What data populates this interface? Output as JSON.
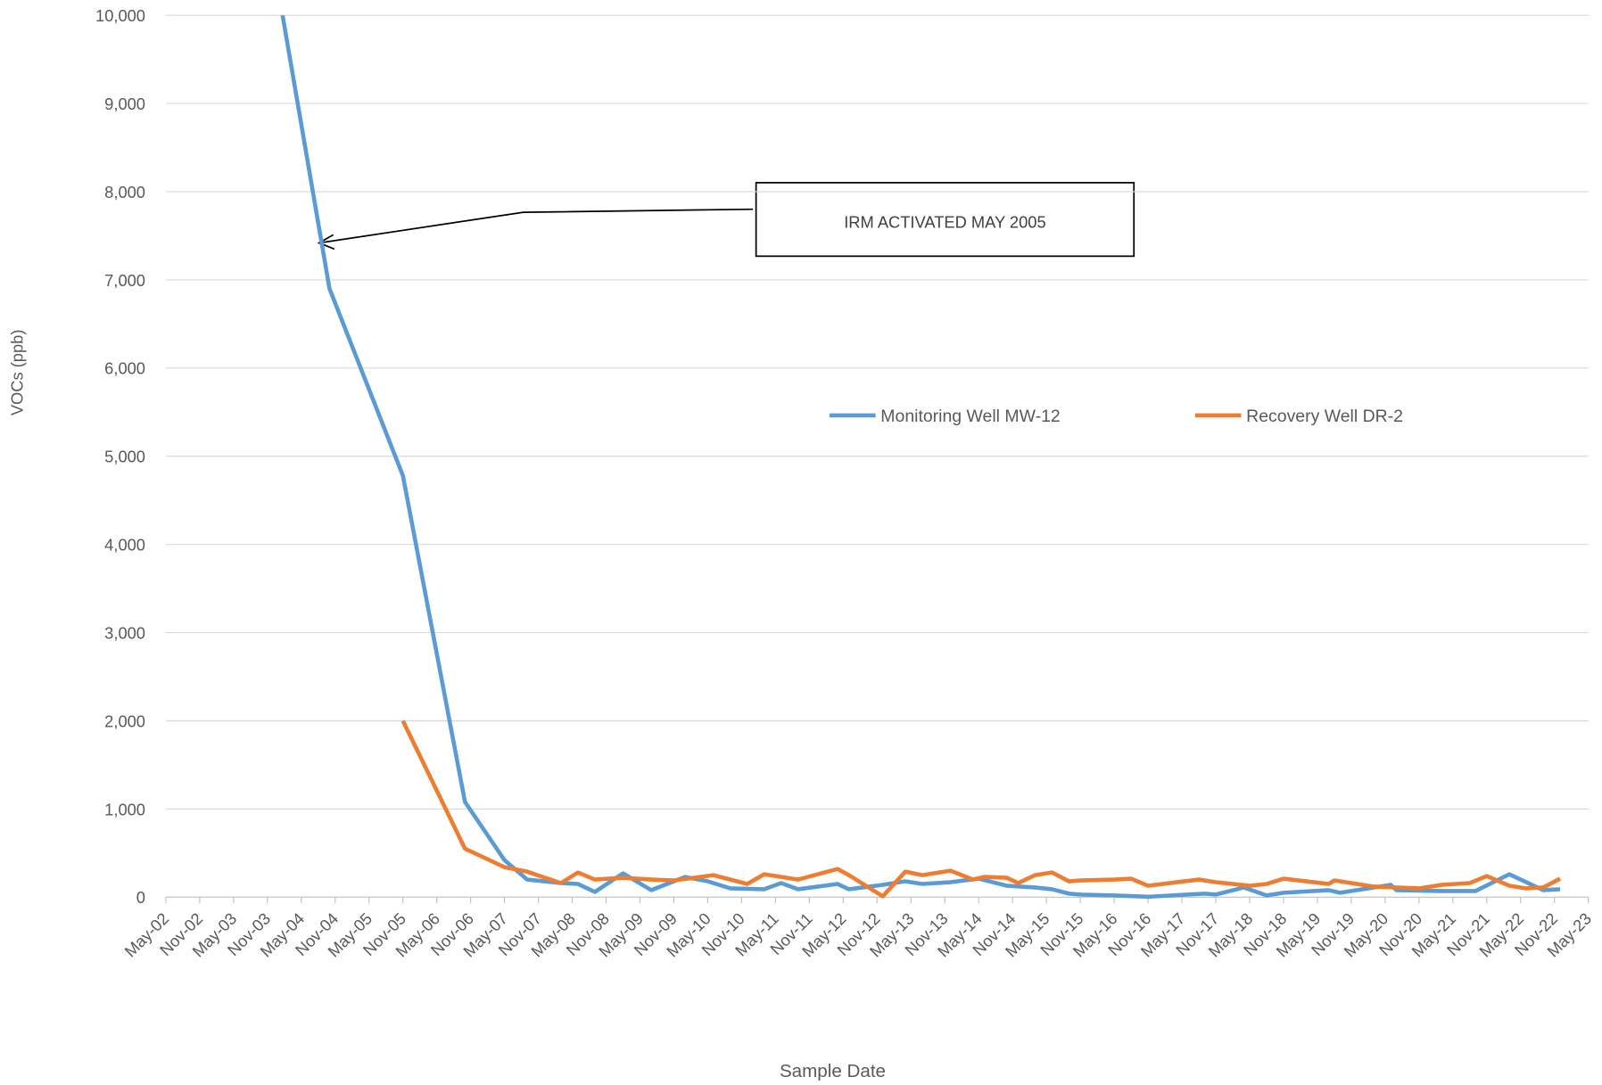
{
  "chart_data": {
    "type": "line",
    "y_label": "VOCs (ppb)",
    "x_label": "Sample Date",
    "annotation": "IRM ACTIVATED MAY 2005",
    "grid": true,
    "legend": "center-right",
    "xlim": [
      "2002-05",
      "2023-05"
    ],
    "xticks": [
      {
        "value": "2002-05",
        "label": "May-02"
      },
      {
        "value": "2002-11",
        "label": "Nov-02"
      },
      {
        "value": "2003-05",
        "label": "May-03"
      },
      {
        "value": "2003-11",
        "label": "Nov-03"
      },
      {
        "value": "2004-05",
        "label": "May-04"
      },
      {
        "value": "2004-11",
        "label": "Nov-04"
      },
      {
        "value": "2005-05",
        "label": "May-05"
      },
      {
        "value": "2005-11",
        "label": "Nov-05"
      },
      {
        "value": "2006-05",
        "label": "May-06"
      },
      {
        "value": "2006-11",
        "label": "Nov-06"
      },
      {
        "value": "2007-05",
        "label": "May-07"
      },
      {
        "value": "2007-11",
        "label": "Nov-07"
      },
      {
        "value": "2008-05",
        "label": "May-08"
      },
      {
        "value": "2008-11",
        "label": "Nov-08"
      },
      {
        "value": "2009-05",
        "label": "May-09"
      },
      {
        "value": "2009-11",
        "label": "Nov-09"
      },
      {
        "value": "2010-05",
        "label": "May-10"
      },
      {
        "value": "2010-11",
        "label": "Nov-10"
      },
      {
        "value": "2011-05",
        "label": "May-11"
      },
      {
        "value": "2011-11",
        "label": "Nov-11"
      },
      {
        "value": "2012-05",
        "label": "May-12"
      },
      {
        "value": "2012-11",
        "label": "Nov-12"
      },
      {
        "value": "2013-05",
        "label": "May-13"
      },
      {
        "value": "2013-11",
        "label": "Nov-13"
      },
      {
        "value": "2014-05",
        "label": "May-14"
      },
      {
        "value": "2014-11",
        "label": "Nov-14"
      },
      {
        "value": "2015-05",
        "label": "May-15"
      },
      {
        "value": "2015-11",
        "label": "Nov-15"
      },
      {
        "value": "2016-05",
        "label": "May-16"
      },
      {
        "value": "2016-11",
        "label": "Nov-16"
      },
      {
        "value": "2017-05",
        "label": "May-17"
      },
      {
        "value": "2017-11",
        "label": "Nov-17"
      },
      {
        "value": "2018-05",
        "label": "May-18"
      },
      {
        "value": "2018-11",
        "label": "Nov-18"
      },
      {
        "value": "2019-05",
        "label": "May-19"
      },
      {
        "value": "2019-11",
        "label": "Nov-19"
      },
      {
        "value": "2020-05",
        "label": "May-20"
      },
      {
        "value": "2020-11",
        "label": "Nov-20"
      },
      {
        "value": "2021-05",
        "label": "May-21"
      },
      {
        "value": "2021-11",
        "label": "Nov-21"
      },
      {
        "value": "2022-05",
        "label": "May-22"
      },
      {
        "value": "2022-11",
        "label": "Nov-22"
      },
      {
        "value": "2023-05",
        "label": "May-23"
      }
    ],
    "ylim": [
      0,
      10000
    ],
    "yticks": [
      0,
      {
        "value": 1000,
        "label": "1,000"
      },
      {
        "value": 2000,
        "label": "2,000"
      },
      {
        "value": 3000,
        "label": "3,000"
      },
      {
        "value": 4000,
        "label": "4,000"
      },
      {
        "value": 5000,
        "label": "5,000"
      },
      {
        "value": 6000,
        "label": "6,000"
      },
      {
        "value": 7000,
        "label": "7,000"
      },
      {
        "value": 8000,
        "label": "8,000"
      },
      {
        "value": 9000,
        "label": "9,000"
      },
      {
        "value": 10000,
        "label": "10,000"
      }
    ],
    "series": [
      {
        "name": "Monitoring Well MW-12",
        "color": "#5b9bd5",
        "x": [
          "2003-11",
          "2004-10",
          "2005-11",
          "2006-10",
          "2007-05",
          "2007-09",
          "2008-03",
          "2008-06",
          "2008-09",
          "2009-02",
          "2009-07",
          "2010-01",
          "2010-05",
          "2010-09",
          "2011-03",
          "2011-06",
          "2011-09",
          "2012-04",
          "2012-06",
          "2012-12",
          "2013-04",
          "2013-07",
          "2013-12",
          "2014-05",
          "2014-10",
          "2015-03",
          "2015-06",
          "2015-09",
          "2015-11",
          "2016-05",
          "2016-11",
          "2017-06",
          "2017-09",
          "2017-11",
          "2018-04",
          "2018-08",
          "2018-11",
          "2019-07",
          "2019-09",
          "2020-06",
          "2020-07",
          "2021-03",
          "2021-09",
          "2022-03",
          "2022-09",
          "2022-12"
        ],
        "values": [
          11000,
          6900,
          4780,
          1080,
          420,
          200,
          160,
          150,
          60,
          270,
          80,
          230,
          180,
          100,
          90,
          160,
          90,
          150,
          90,
          140,
          180,
          150,
          170,
          210,
          130,
          110,
          90,
          40,
          30,
          20,
          5,
          30,
          40,
          30,
          110,
          20,
          50,
          80,
          50,
          140,
          80,
          70,
          70,
          260,
          80,
          90
        ]
      },
      {
        "name": "Recovery Well DR-2",
        "color": "#ed7d31",
        "x": [
          "2005-11",
          "2006-10",
          "2007-05",
          "2007-09",
          "2008-03",
          "2008-06",
          "2008-09",
          "2009-02",
          "2009-07",
          "2009-11",
          "2010-06",
          "2010-12",
          "2011-03",
          "2011-09",
          "2012-04",
          "2012-06",
          "2012-12",
          "2013-04",
          "2013-07",
          "2013-12",
          "2014-04",
          "2014-06",
          "2014-10",
          "2014-12",
          "2015-03",
          "2015-06",
          "2015-09",
          "2015-11",
          "2016-05",
          "2016-08",
          "2016-11",
          "2017-08",
          "2017-11",
          "2018-05",
          "2018-08",
          "2018-11",
          "2019-07",
          "2019-08",
          "2019-09",
          "2020-03",
          "2020-07",
          "2020-11",
          "2021-03",
          "2021-08",
          "2021-11",
          "2022-03",
          "2022-06",
          "2022-09",
          "2022-12"
        ],
        "values": [
          2000,
          550,
          340,
          290,
          160,
          280,
          200,
          220,
          200,
          190,
          250,
          150,
          260,
          200,
          320,
          250,
          10,
          290,
          250,
          300,
          200,
          230,
          220,
          160,
          250,
          280,
          180,
          190,
          200,
          210,
          130,
          200,
          170,
          130,
          150,
          210,
          150,
          190,
          180,
          120,
          110,
          100,
          140,
          160,
          240,
          130,
          100,
          110,
          210
        ]
      }
    ]
  }
}
